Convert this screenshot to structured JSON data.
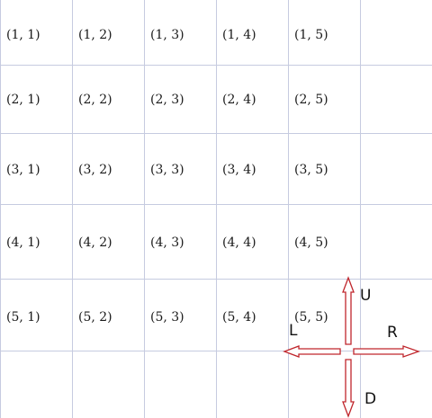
{
  "grid": {
    "cells": [
      [
        "(1, 1)",
        "(1, 2)",
        "(1, 3)",
        "(1, 4)",
        "(1, 5)"
      ],
      [
        "(2, 1)",
        "(2, 2)",
        "(2, 3)",
        "(2, 4)",
        "(2, 5)"
      ],
      [
        "(3, 1)",
        "(3, 2)",
        "(3, 3)",
        "(3, 4)",
        "(3, 5)"
      ],
      [
        "(4, 1)",
        "(4, 2)",
        "(4, 3)",
        "(4, 4)",
        "(4, 5)"
      ],
      [
        "(5, 1)",
        "(5, 2)",
        "(5, 3)",
        "(5, 4)",
        "(5, 5)"
      ]
    ],
    "line_color": "#c6cbe0"
  },
  "arrows": {
    "up_label": "U",
    "down_label": "D",
    "left_label": "L",
    "right_label": "R",
    "stroke_color": "#c0262c"
  }
}
